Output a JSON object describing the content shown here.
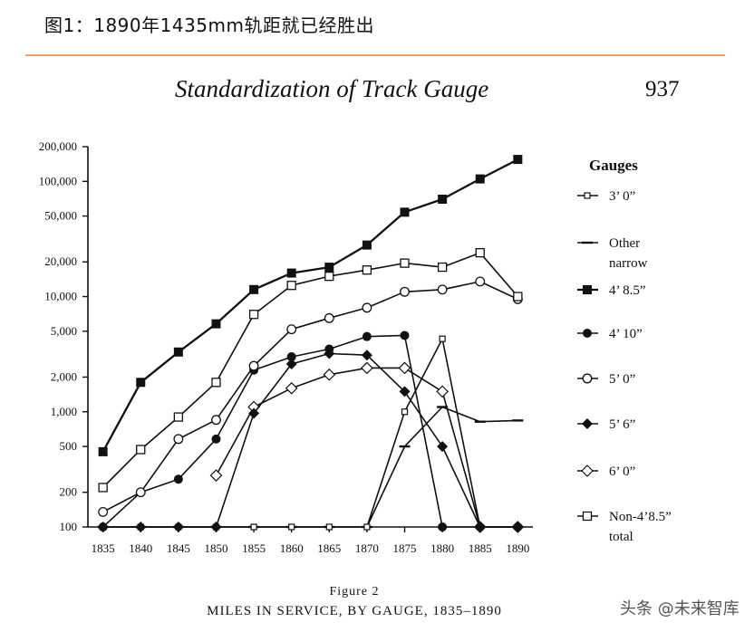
{
  "header": {
    "figure_title": "图1：1890年1435mm轨距就已经胜出"
  },
  "page": {
    "running_title": "Standardization of Track Gauge",
    "page_number": "937"
  },
  "caption": {
    "figure_label": "Figure 2",
    "title": "MILES IN SERVICE, BY GAUGE, 1835–1890"
  },
  "watermark": "头条 @未来智库",
  "colors": {
    "orange_rule": "#f0a060",
    "ink": "#111111"
  },
  "chart_data": {
    "type": "line",
    "title": "",
    "xlabel": "",
    "ylabel": "",
    "yscale": "log",
    "ylim": [
      100,
      200000
    ],
    "x": [
      1835,
      1840,
      1845,
      1850,
      1855,
      1860,
      1865,
      1870,
      1875,
      1880,
      1885,
      1890
    ],
    "x_tick_labels": [
      "1835",
      "1840",
      "1845",
      "1850",
      "1855",
      "1860",
      "1865",
      "1870",
      "1875",
      "1880",
      "1885",
      "1890"
    ],
    "y_ticks": [
      100,
      200,
      500,
      1000,
      2000,
      5000,
      10000,
      20000,
      50000,
      100000,
      200000
    ],
    "y_tick_labels": [
      "100",
      "200",
      "500",
      "1,000",
      "2,000",
      "5,000",
      "10,000",
      "20,000",
      "50,000",
      "100,000",
      "200,000"
    ],
    "legend_title": "Gauges",
    "series": [
      {
        "name": "3’ 0”",
        "marker": "small-open-square",
        "points": [
          [
            1835,
            100
          ],
          [
            1840,
            100
          ],
          [
            1845,
            100
          ],
          [
            1850,
            100
          ],
          [
            1855,
            100
          ],
          [
            1860,
            100
          ],
          [
            1865,
            100
          ],
          [
            1870,
            100
          ],
          [
            1875,
            1000
          ],
          [
            1880,
            4300
          ],
          [
            1885,
            100
          ],
          [
            1890,
            100
          ]
        ]
      },
      {
        "name": "Other narrow",
        "marker": "dash",
        "points": [
          [
            1835,
            100
          ],
          [
            1840,
            100
          ],
          [
            1845,
            100
          ],
          [
            1850,
            100
          ],
          [
            1855,
            100
          ],
          [
            1860,
            100
          ],
          [
            1865,
            100
          ],
          [
            1870,
            100
          ],
          [
            1875,
            500
          ],
          [
            1880,
            1100
          ],
          [
            1885,
            820
          ],
          [
            1890,
            840
          ]
        ]
      },
      {
        "name": "4’ 8.5”",
        "marker": "filled-square",
        "points": [
          [
            1835,
            450
          ],
          [
            1840,
            1800
          ],
          [
            1845,
            3300
          ],
          [
            1850,
            5800
          ],
          [
            1855,
            11500
          ],
          [
            1860,
            16000
          ],
          [
            1865,
            18000
          ],
          [
            1870,
            28000
          ],
          [
            1875,
            54000
          ],
          [
            1880,
            70000
          ],
          [
            1885,
            105000
          ],
          [
            1890,
            155000
          ]
        ]
      },
      {
        "name": "4’ 10”",
        "marker": "filled-circle",
        "points": [
          [
            1835,
            100
          ],
          [
            1840,
            200
          ],
          [
            1845,
            260
          ],
          [
            1850,
            580
          ],
          [
            1855,
            2300
          ],
          [
            1860,
            3000
          ],
          [
            1865,
            3500
          ],
          [
            1870,
            4500
          ],
          [
            1875,
            4600
          ],
          [
            1880,
            100
          ],
          [
            1885,
            100
          ],
          [
            1890,
            100
          ]
        ]
      },
      {
        "name": "5’ 0”",
        "marker": "open-circle",
        "points": [
          [
            1835,
            135
          ],
          [
            1840,
            200
          ],
          [
            1845,
            580
          ],
          [
            1850,
            850
          ],
          [
            1855,
            2500
          ],
          [
            1860,
            5200
          ],
          [
            1865,
            6500
          ],
          [
            1870,
            8000
          ],
          [
            1875,
            11000
          ],
          [
            1880,
            11500
          ],
          [
            1885,
            13500
          ],
          [
            1890,
            9500
          ]
        ]
      },
      {
        "name": "5’ 6”",
        "marker": "filled-diamond",
        "points": [
          [
            1835,
            100
          ],
          [
            1840,
            100
          ],
          [
            1845,
            100
          ],
          [
            1850,
            100
          ],
          [
            1855,
            970
          ],
          [
            1860,
            2600
          ],
          [
            1865,
            3200
          ],
          [
            1870,
            3100
          ],
          [
            1875,
            1500
          ],
          [
            1880,
            500
          ],
          [
            1885,
            100
          ],
          [
            1890,
            100
          ]
        ]
      },
      {
        "name": "6’ 0”",
        "marker": "open-diamond",
        "points": [
          [
            1850,
            280
          ],
          [
            1855,
            1100
          ],
          [
            1860,
            1600
          ],
          [
            1865,
            2100
          ],
          [
            1870,
            2400
          ],
          [
            1875,
            2400
          ],
          [
            1880,
            1500
          ],
          [
            1885,
            100
          ],
          [
            1890,
            100
          ]
        ]
      },
      {
        "name": "Non-4’8.5” total",
        "marker": "open-square",
        "points": [
          [
            1835,
            220
          ],
          [
            1840,
            470
          ],
          [
            1845,
            900
          ],
          [
            1850,
            1800
          ],
          [
            1855,
            7000
          ],
          [
            1860,
            12500
          ],
          [
            1865,
            15000
          ],
          [
            1870,
            17000
          ],
          [
            1875,
            19500
          ],
          [
            1880,
            18000
          ],
          [
            1885,
            24000
          ],
          [
            1890,
            10000
          ]
        ]
      }
    ]
  }
}
